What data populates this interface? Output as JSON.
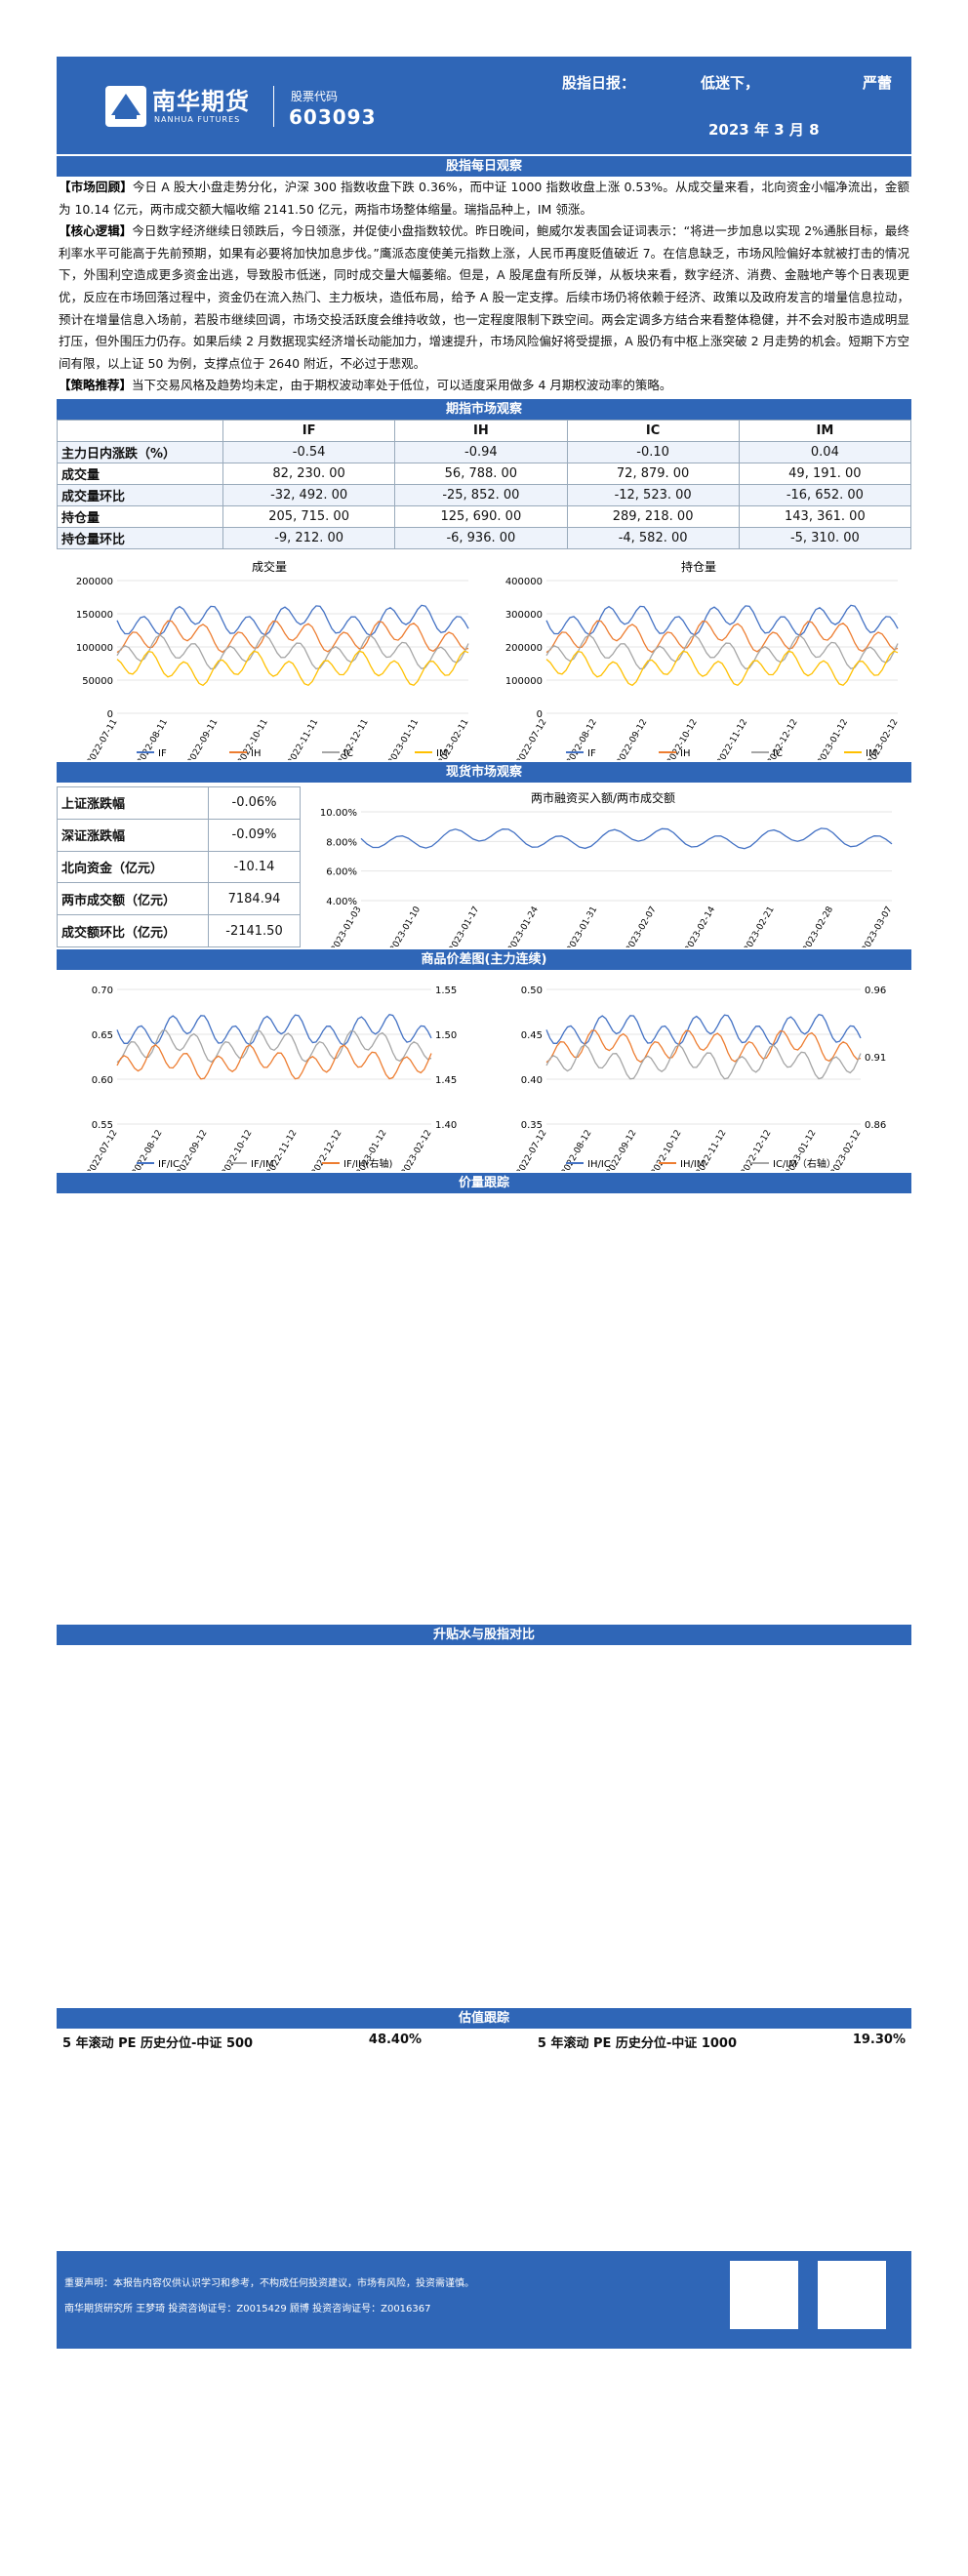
{
  "header": {
    "brand_cn": "南华期货",
    "brand_en": "NANHUA FUTURES",
    "stock_label": "股票代码",
    "stock_code": "603093",
    "title": "股指日报：",
    "tone": "低迷下，",
    "author": "严蕾",
    "date": "2023 年 3 月 8"
  },
  "sections": {
    "daily": "股指每日观察",
    "futures": "期指市场观察",
    "spot": "现货市场观察",
    "spread": "商品价差图(主力连续)",
    "volprice": "价量跟踪",
    "basis": "升贴水与股指对比",
    "valuation": "估值跟踪"
  },
  "paragraphs": [
    {
      "tag": "【市场回顾】",
      "text": "今日 A 股大小盘走势分化，沪深 300 指数收盘下跌 0.36%，而中证 1000 指数收盘上涨 0.53%。从成交量来看，北向资金小幅净流出，金额为 10.14 亿元，两市成交额大幅收缩 2141.50 亿元，两指市场整体缩量。瑞指品种上，IM 领涨。"
    },
    {
      "tag": "【核心逻辑】",
      "text": "今日数字经济继续日领跌后，今日领涨，并促使小盘指数较优。昨日晚间，鲍威尔发表国会证词表示：“将进一步加息以实现 2%通胀目标，最终利率水平可能高于先前预期，如果有必要将加快加息步伐。”鹰派态度使美元指数上涨，人民币再度贬值破近 7。在信息缺乏，市场风险偏好本就被打击的情况下，外围利空造成更多资金出逃，导致股市低迷，同时成交量大幅萎缩。但是，A 股尾盘有所反弹，从板块来看，数字经济、消费、金融地产等个日表现更优，反应在市场回落过程中，资金仍在流入热门、主力板块，造低布局，给予 A 股一定支撑。后续市场仍将依赖于经济、政策以及政府发言的增量信息拉动，预计在增量信息入场前，若股市继续回调，市场交投活跃度会维持收敛，也一定程度限制下跌空间。两会定调多方结合来看整体稳健，并不会对股市造成明显打压，但外围压力仍存。如果后续 2 月数据现实经济增长动能加力，增速提升，市场风险偏好将受提振，A 股仍有中枢上涨突破 2 月走势的机会。短期下方空间有限，以上证 50 为例，支撑点位于 2640 附近，不必过于悲观。"
    },
    {
      "tag": "【策略推荐】",
      "text": "当下交易风格及趋势均未定，由于期权波动率处于低位，可以适度采用做多 4 月期权波动率的策略。"
    }
  ],
  "futures_table": {
    "headers": [
      "",
      "IF",
      "IH",
      "IC",
      "IM"
    ],
    "rows": [
      {
        "label": "主力日内涨跌（%）",
        "values": [
          "-0.54",
          "-0.94",
          "-0.10",
          "0.04"
        ]
      },
      {
        "label": "成交量",
        "values": [
          "82, 230. 00",
          "56, 788. 00",
          "72, 879. 00",
          "49, 191. 00"
        ]
      },
      {
        "label": "成交量环比",
        "values": [
          "-32, 492. 00",
          "-25, 852. 00",
          "-12, 523. 00",
          "-16, 652. 00"
        ]
      },
      {
        "label": "持仓量",
        "values": [
          "205, 715. 00",
          "125, 690. 00",
          "289, 218. 00",
          "143, 361. 00"
        ]
      },
      {
        "label": "持仓量环比",
        "values": [
          "-9, 212. 00",
          "-6, 936. 00",
          "-4, 582. 00",
          "-5, 310. 00"
        ]
      }
    ]
  },
  "spot_table": [
    {
      "label": "上证涨跌幅",
      "value": "-0.06%"
    },
    {
      "label": "深证涨跌幅",
      "value": "-0.09%"
    },
    {
      "label": "北向资金（亿元）",
      "value": "-10.14"
    },
    {
      "label": "两市成交额（亿元）",
      "value": "7184.94"
    },
    {
      "label": "成交额环比（亿元）",
      "value": "-2141.50"
    }
  ],
  "valuation": {
    "left_label": "5 年滚动 PE 历史分位-中证 500",
    "left_value": "48.40%",
    "right_label": "5 年滚动 PE 历史分位-中证 1000",
    "right_value": "19.30%"
  },
  "footer": {
    "line1": "重要声明：本报告内容仅供认识学习和参考，不构成任何投资建议，市场有风险，投资需谨慎。",
    "line2": "南华期货研究所  王梦琦  投资咨询证号：Z0015429    顾博  投资咨询证号：Z0016367"
  },
  "chart_data": [
    {
      "type": "line",
      "title": "成交量",
      "yticks": [
        "200000",
        "150000",
        "100000",
        "50000",
        "0"
      ],
      "xticks": [
        "2022-07-11",
        "2022-08-11",
        "2022-09-11",
        "2022-10-11",
        "2022-11-11",
        "2022-12-11",
        "2023-01-11",
        "2023-02-11"
      ],
      "series": [
        {
          "name": "IF",
          "color": "#4472c4"
        },
        {
          "name": "IH",
          "color": "#ed7d31"
        },
        {
          "name": "IC",
          "color": "#a5a5a5"
        },
        {
          "name": "IM",
          "color": "#ffc000"
        }
      ]
    },
    {
      "type": "line",
      "title": "持仓量",
      "yticks": [
        "400000",
        "300000",
        "200000",
        "100000",
        "0"
      ],
      "xticks": [
        "2022-07-12",
        "2022-08-12",
        "2022-09-12",
        "2022-10-12",
        "2022-11-12",
        "2022-12-12",
        "2023-01-12",
        "2023-02-12"
      ],
      "series": [
        {
          "name": "IF",
          "color": "#4472c4"
        },
        {
          "name": "IH",
          "color": "#ed7d31"
        },
        {
          "name": "IC",
          "color": "#a5a5a5"
        },
        {
          "name": "IM",
          "color": "#ffc000"
        }
      ]
    },
    {
      "type": "line",
      "title": "两市融资买入额/两市成交额",
      "yticks": [
        "10.00%",
        "8.00%",
        "6.00%",
        "4.00%"
      ],
      "xticks": [
        "2023-01-03",
        "2023-01-10",
        "2023-01-17",
        "2023-01-24",
        "2023-01-31",
        "2023-02-07",
        "2023-02-14",
        "2023-02-21",
        "2023-02-28",
        "2023-03-07"
      ]
    },
    {
      "type": "line",
      "yticks": [
        "0.70",
        "0.65",
        "0.60",
        "0.55"
      ],
      "ryticks": [
        "1.55",
        "1.50",
        "1.45",
        "1.40"
      ],
      "xticks": [
        "2022-07-12",
        "2022-08-12",
        "2022-09-12",
        "2022-10-12",
        "2022-11-12",
        "2022-12-12",
        "2023-01-12",
        "2023-02-12"
      ],
      "series": [
        {
          "name": "IF/IC",
          "color": "#4472c4"
        },
        {
          "name": "IF/IM",
          "color": "#a5a5a5"
        },
        {
          "name": "IF/IH(右轴)",
          "color": "#ed7d31"
        }
      ]
    },
    {
      "type": "line",
      "yticks": [
        "0.50",
        "0.45",
        "0.40",
        "0.35"
      ],
      "ryticks": [
        "0.96",
        "0.91",
        "0.86"
      ],
      "xticks": [
        "2022-07-12",
        "2022-08-12",
        "2022-09-12",
        "2022-10-12",
        "2022-11-12",
        "2022-12-12",
        "2023-01-12",
        "2023-02-12"
      ],
      "series": [
        {
          "name": "IH/IC",
          "color": "#4472c4"
        },
        {
          "name": "IH/IM",
          "color": "#ed7d31"
        },
        {
          "name": "IC/IM（右轴）",
          "color": "#a5a5a5"
        }
      ]
    }
  ]
}
